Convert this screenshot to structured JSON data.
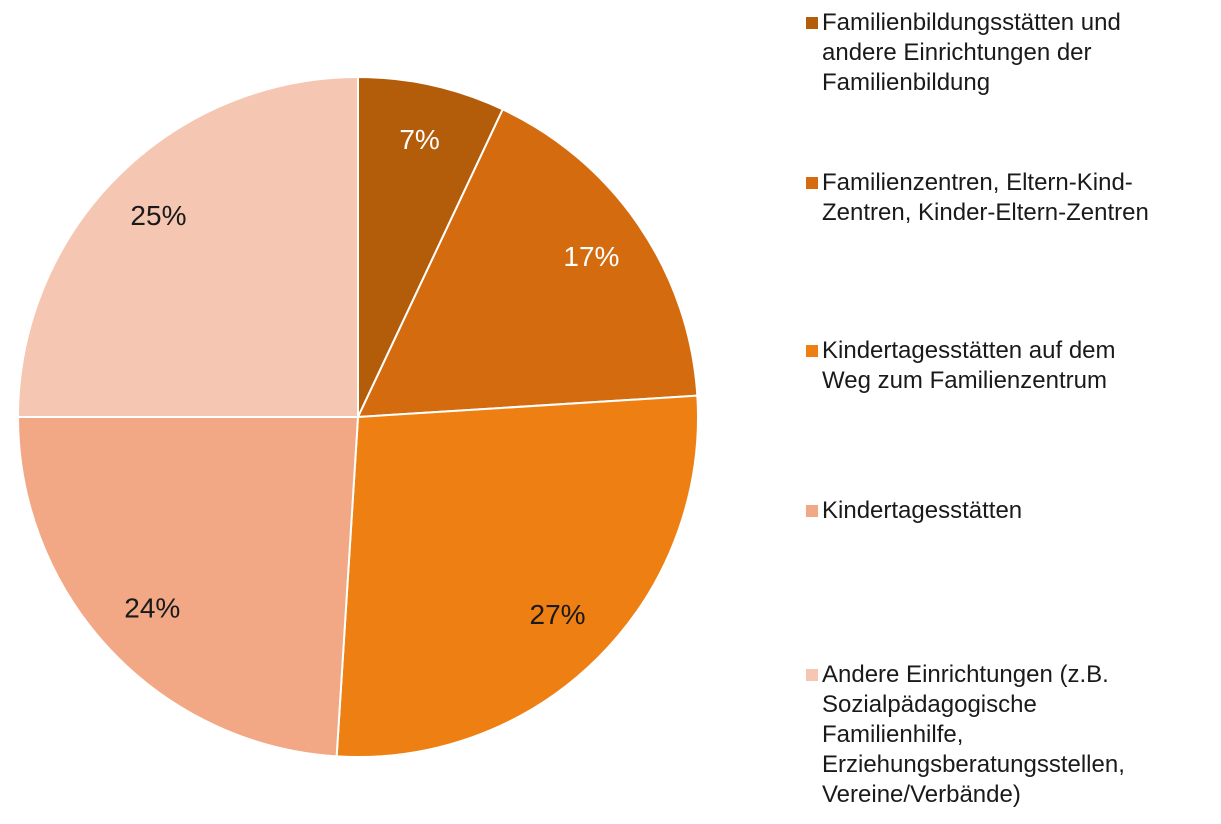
{
  "chart_data": {
    "type": "pie",
    "categories": [
      "Familienbildungsstätten und\nandere Einrichtungen der\nFamilienbildung",
      "Familienzentren, Eltern-Kind-\nZentren, Kinder-Eltern-Zentren",
      "Kindertagesstätten auf dem\nWeg zum Familienzentrum",
      "Kindertagesstätten",
      "Andere Einrichtungen (z.B.\nSozialpädagogische\nFamilienhilfe,\nErziehungsberatungsstellen,\nVereine/Verbände)"
    ],
    "values": [
      7,
      17,
      27,
      24,
      25
    ],
    "value_labels": [
      "7%",
      "17%",
      "27%",
      "24%",
      "25%"
    ],
    "colors": [
      "#b35c0a",
      "#d46c0f",
      "#ee7f12",
      "#f2a785",
      "#f5c6b2"
    ],
    "label_colors": [
      "#ffffff",
      "#ffffff",
      "#1a1a1a",
      "#1a1a1a",
      "#1a1a1a"
    ],
    "legend": "right"
  }
}
